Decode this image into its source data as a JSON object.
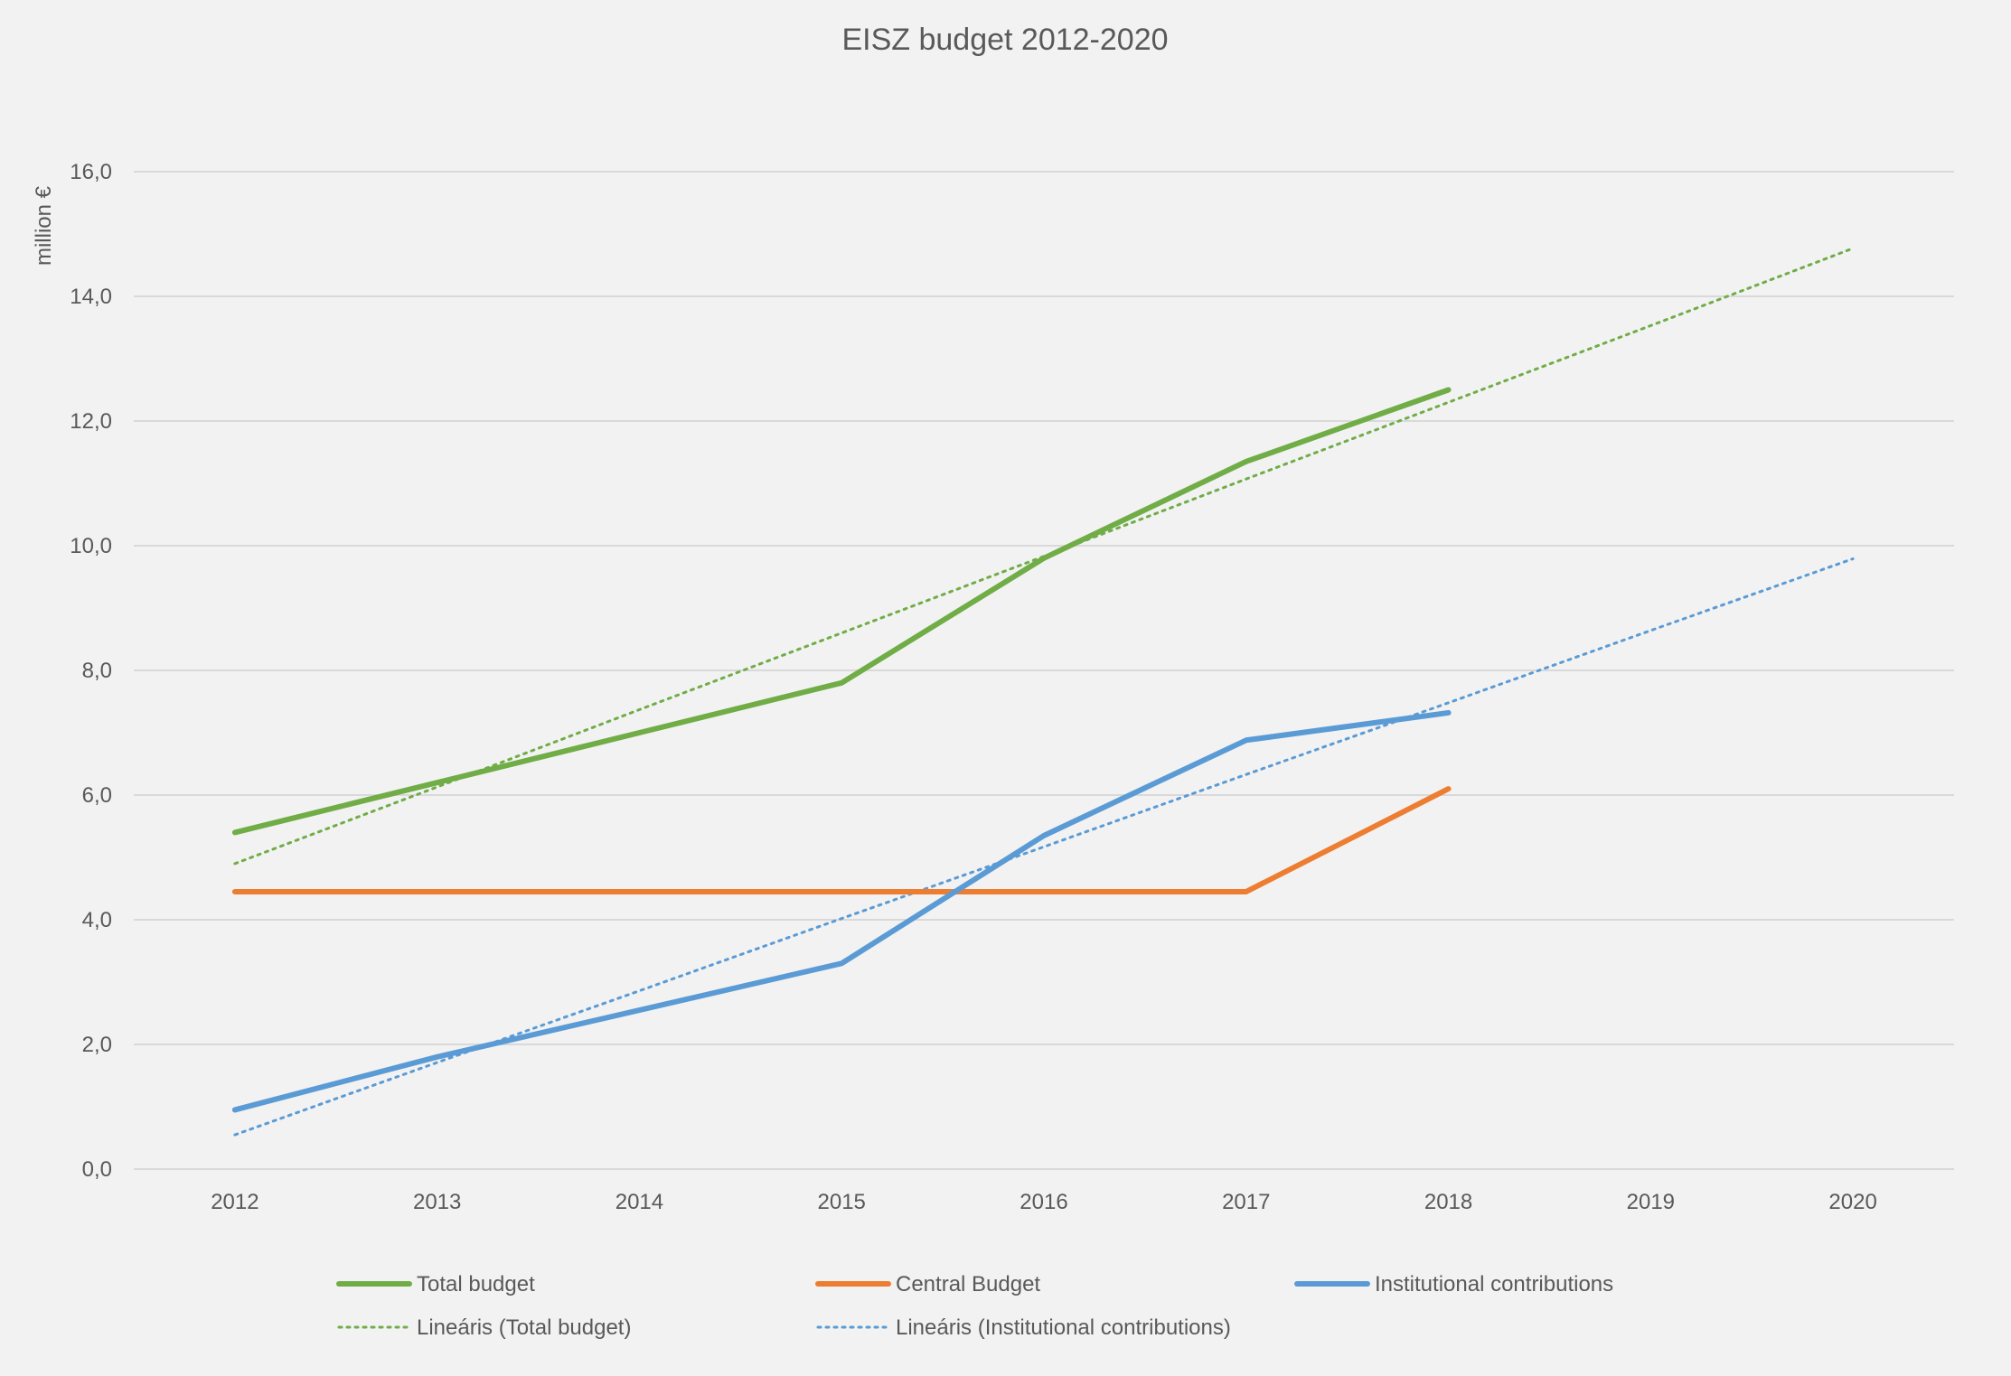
{
  "chart_data": {
    "type": "line",
    "title": "EISZ budget 2012-2020",
    "ylabel": "million €",
    "xlabel": "",
    "ylim": [
      0,
      16
    ],
    "y_ticks": [
      "0,0",
      "2,0",
      "4,0",
      "6,0",
      "8,0",
      "10,0",
      "12,0",
      "14,0",
      "16,0"
    ],
    "y_tick_values": [
      0,
      2,
      4,
      6,
      8,
      10,
      12,
      14,
      16
    ],
    "categories": [
      "2012",
      "2013",
      "2014",
      "2015",
      "2016",
      "2017",
      "2018",
      "2019",
      "2020"
    ],
    "grid": true,
    "legend_position": "bottom",
    "series": [
      {
        "name": "Total budget",
        "style": "solid",
        "color": "#70ad47",
        "values": [
          5.4,
          6.2,
          7.0,
          7.8,
          9.8,
          11.35,
          12.5,
          null,
          null
        ]
      },
      {
        "name": "Central Budget",
        "style": "solid",
        "color": "#ed7d31",
        "values": [
          4.45,
          4.45,
          4.45,
          4.45,
          4.45,
          4.45,
          6.1,
          null,
          null
        ]
      },
      {
        "name": "Institutional contributions",
        "style": "solid",
        "color": "#5b9bd5",
        "values": [
          0.95,
          1.8,
          2.55,
          3.3,
          5.35,
          6.88,
          7.32,
          null,
          null
        ]
      },
      {
        "name": "Lineáris (Total budget)",
        "style": "dotted",
        "color": "#70ad47",
        "values": [
          4.9,
          6.13,
          7.37,
          8.6,
          9.83,
          11.07,
          12.3,
          13.53,
          14.77
        ]
      },
      {
        "name": "Lineáris (Institutional contributions)",
        "style": "dotted",
        "color": "#5b9bd5",
        "values": [
          0.55,
          1.71,
          2.86,
          4.02,
          5.17,
          6.33,
          7.48,
          8.64,
          9.79
        ]
      }
    ]
  }
}
